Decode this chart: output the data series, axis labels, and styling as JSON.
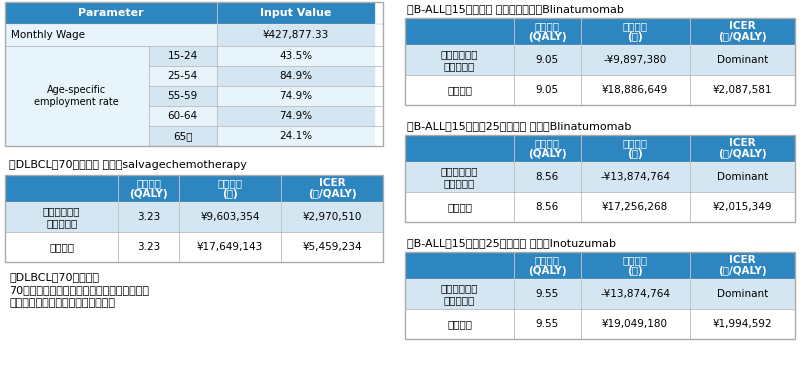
{
  "header_bg": "#2e86c1",
  "header_text": "#ffffff",
  "row_bg_light": "#d4e6f1",
  "row_bg_white": "#ffffff",
  "top_header_bg": "#2e86c1",
  "top_header_text": "#ffffff",
  "top_row_bg1": "#e8f4fb",
  "top_row_bg2": "#d4e6f1",
  "border_color": "#aaaaaa",
  "text_color": "#000000",
  "top_table": {
    "header": [
      "Parameter",
      "Input Value"
    ],
    "monthly_wage": "¥427,877.33",
    "age_label": "Age-specific\nemployment rate",
    "age_rows": [
      [
        "15-24",
        "43.5%"
      ],
      [
        "25-54",
        "84.9%"
      ],
      [
        "55-59",
        "74.9%"
      ],
      [
        "60-64",
        "74.9%"
      ],
      [
        "65～",
        "24.1%"
      ]
    ]
  },
  "dlbcl_title": "」DLBCL：70歳未満』 比較：salvagechemotherapy",
  "dlbcl_rows": [
    [
      "生産性損失を\n含めた分析",
      "3.23",
      "¥9,603,354",
      "¥2,970,510"
    ],
    [
      "基本分析",
      "3.23",
      "¥17,649,143",
      "¥5,459,234"
    ]
  ],
  "dlbcl70_lines": [
    "」DLBCL：70歳以上』",
    "70歳以上の集団において就労している人の割",
    "合は少ないため、分析を実施しない"
  ],
  "ball1_title": "」B-ALL：15歳未満』 比較対照技術：Blinatumomab",
  "ball1_rows": [
    [
      "生産性損失を\n含めた分析",
      "9.05",
      "-¥9,897,380",
      "Dominant"
    ],
    [
      "基本分析",
      "9.05",
      "¥18,886,649",
      "¥2,087,581"
    ]
  ],
  "ball2_title": "」B-ALL：15歳以上25歳未満』 比較：Blinatumomab",
  "ball2_rows": [
    [
      "生産性損失を\n含めた分析",
      "8.56",
      "-¥13,874,764",
      "Dominant"
    ],
    [
      "基本分析",
      "8.56",
      "¥17,256,268",
      "¥2,015,349"
    ]
  ],
  "ball3_title": "」B-ALL：15歳以上25歳未満』 比較：Inotuzumab",
  "ball3_rows": [
    [
      "生産性損失を\n含めた分析",
      "9.55",
      "-¥13,874,764",
      "Dominant"
    ],
    [
      "基本分析",
      "9.55",
      "¥19,049,180",
      "¥1,994,592"
    ]
  ],
  "table_col_headers": [
    "増分効果\n(QALY)",
    "増分費用\n(円)",
    "ICER\n(円/QALY)"
  ]
}
